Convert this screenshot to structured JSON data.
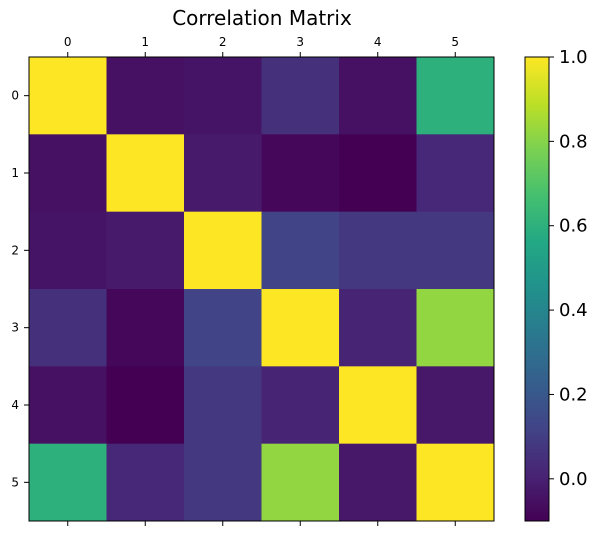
{
  "chart_data": {
    "type": "heatmap",
    "title": "Correlation Matrix",
    "x_categories": [
      "0",
      "1",
      "2",
      "3",
      "4",
      "5"
    ],
    "y_categories": [
      "0",
      "1",
      "2",
      "3",
      "4",
      "5"
    ],
    "values": [
      [
        1.0,
        -0.05,
        -0.04,
        0.05,
        -0.05,
        0.6
      ],
      [
        -0.05,
        1.0,
        -0.02,
        -0.08,
        -0.1,
        0.02
      ],
      [
        -0.04,
        -0.02,
        1.0,
        0.12,
        0.08,
        0.08
      ],
      [
        0.05,
        -0.08,
        0.12,
        1.0,
        0.01,
        0.82
      ],
      [
        -0.05,
        -0.1,
        0.08,
        0.01,
        1.0,
        -0.03
      ],
      [
        0.6,
        0.02,
        0.08,
        0.82,
        -0.03,
        1.0
      ]
    ],
    "colormap": "viridis",
    "color_range": [
      -0.1,
      1.0
    ],
    "colorbar_ticks": [
      {
        "value": 1.0,
        "label": "1.0"
      },
      {
        "value": 0.8,
        "label": "0.8"
      },
      {
        "value": 0.6,
        "label": "0.6"
      },
      {
        "value": 0.4,
        "label": "0.4"
      },
      {
        "value": 0.2,
        "label": "0.2"
      },
      {
        "value": 0.0,
        "label": "0.0"
      }
    ],
    "x_ticks_position": "top",
    "grid": false
  }
}
